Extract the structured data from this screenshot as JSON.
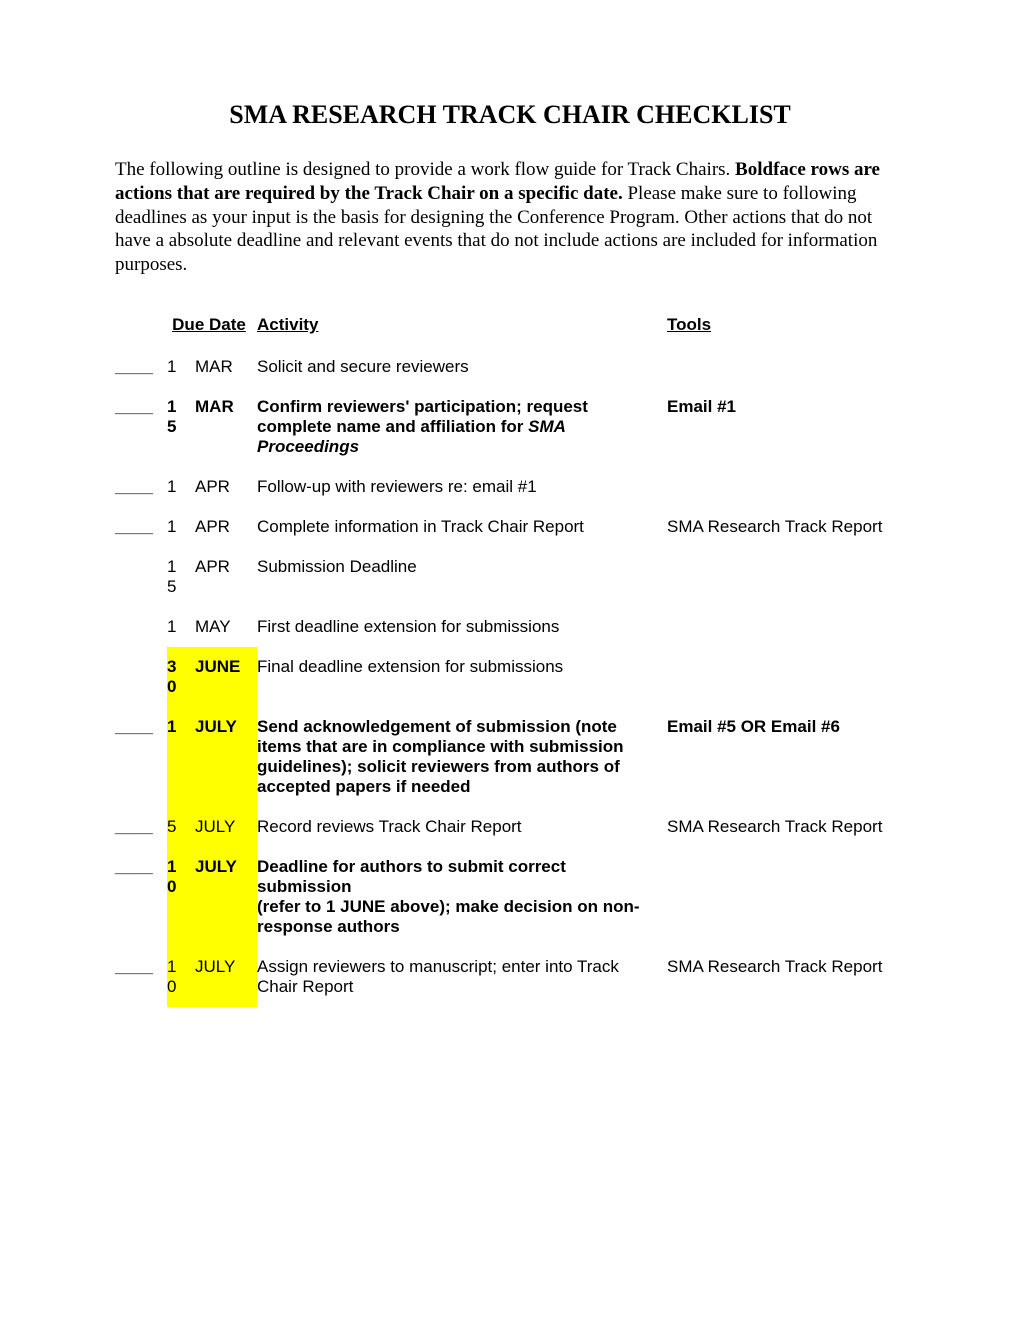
{
  "title": "SMA RESEARCH TRACK CHAIR CHECKLIST",
  "intro": {
    "part1": "The following outline is designed to provide a work flow guide for Track Chairs.  ",
    "bold": "Boldface rows are actions that are required by the Track Chair on a specific date.",
    "part2": "  Please make sure to following deadlines as your input is the basis for designing the Conference Program.  Other actions that do not have a absolute deadline and relevant events that do not include actions are included for information purposes."
  },
  "headers": {
    "due_date": "Due Date",
    "activity": "Activity",
    "tools": "Tools"
  },
  "blank": "____",
  "rows": [
    {
      "check": true,
      "day": "1",
      "month": "MAR",
      "activity": "Solicit and secure reviewers",
      "tools": "",
      "bold": false,
      "hl": false
    },
    {
      "check": true,
      "day": "15",
      "month": "MAR",
      "activity_html": "<b>Confirm reviewers' participation; request complete name and affiliation for <i>SMA Proceedings</i></b>",
      "tools": "Email #1",
      "bold": true,
      "hl": false
    },
    {
      "check": true,
      "day": "1",
      "month": "APR",
      "activity": "Follow-up with reviewers re: email #1",
      "tools": "",
      "bold": false,
      "hl": false
    },
    {
      "check": true,
      "day": "1",
      "month": "APR",
      "activity": "Complete information in Track Chair Report",
      "tools": "SMA Research Track Report",
      "bold": false,
      "hl": false
    },
    {
      "check": false,
      "day": "15",
      "month": "APR",
      "activity": "Submission Deadline",
      "tools": "",
      "bold": false,
      "hl": false
    },
    {
      "check": false,
      "day": "1",
      "month": "MAY",
      "activity": "First deadline extension for submissions",
      "tools": "",
      "bold": false,
      "hl": false
    },
    {
      "check": false,
      "day": "30",
      "month": "JUNE",
      "activity": "Final deadline extension for submissions",
      "tools": "",
      "bold": false,
      "hl": true,
      "day_bold": true,
      "month_bold": true
    },
    {
      "check": true,
      "day": "1",
      "month": "JULY",
      "activity": "Send acknowledgement of submission (note items that are in compliance with submission guidelines); solicit reviewers from authors of accepted papers if needed",
      "tools": "Email #5 OR Email #6",
      "bold": true,
      "hl": true
    },
    {
      "check": true,
      "day": "5",
      "month": "JULY",
      "activity": "Record reviews Track Chair Report",
      "tools": "SMA Research Track Report",
      "bold": false,
      "hl": true
    },
    {
      "check": true,
      "day": "10",
      "month": "JULY",
      "activity_html": "<b>Deadline for authors to submit correct submission<br>(refer to 1 JUNE above); make decision on non-response authors</b>",
      "tools": "",
      "bold": true,
      "hl": true
    },
    {
      "check": true,
      "day": "10",
      "month": "JULY",
      "activity": "Assign reviewers to manuscript; enter into Track Chair Report",
      "tools": "SMA Research Track Report",
      "bold": false,
      "hl": true
    }
  ],
  "colors": {
    "highlight": "#ffff00",
    "text": "#000000",
    "background": "#ffffff"
  }
}
